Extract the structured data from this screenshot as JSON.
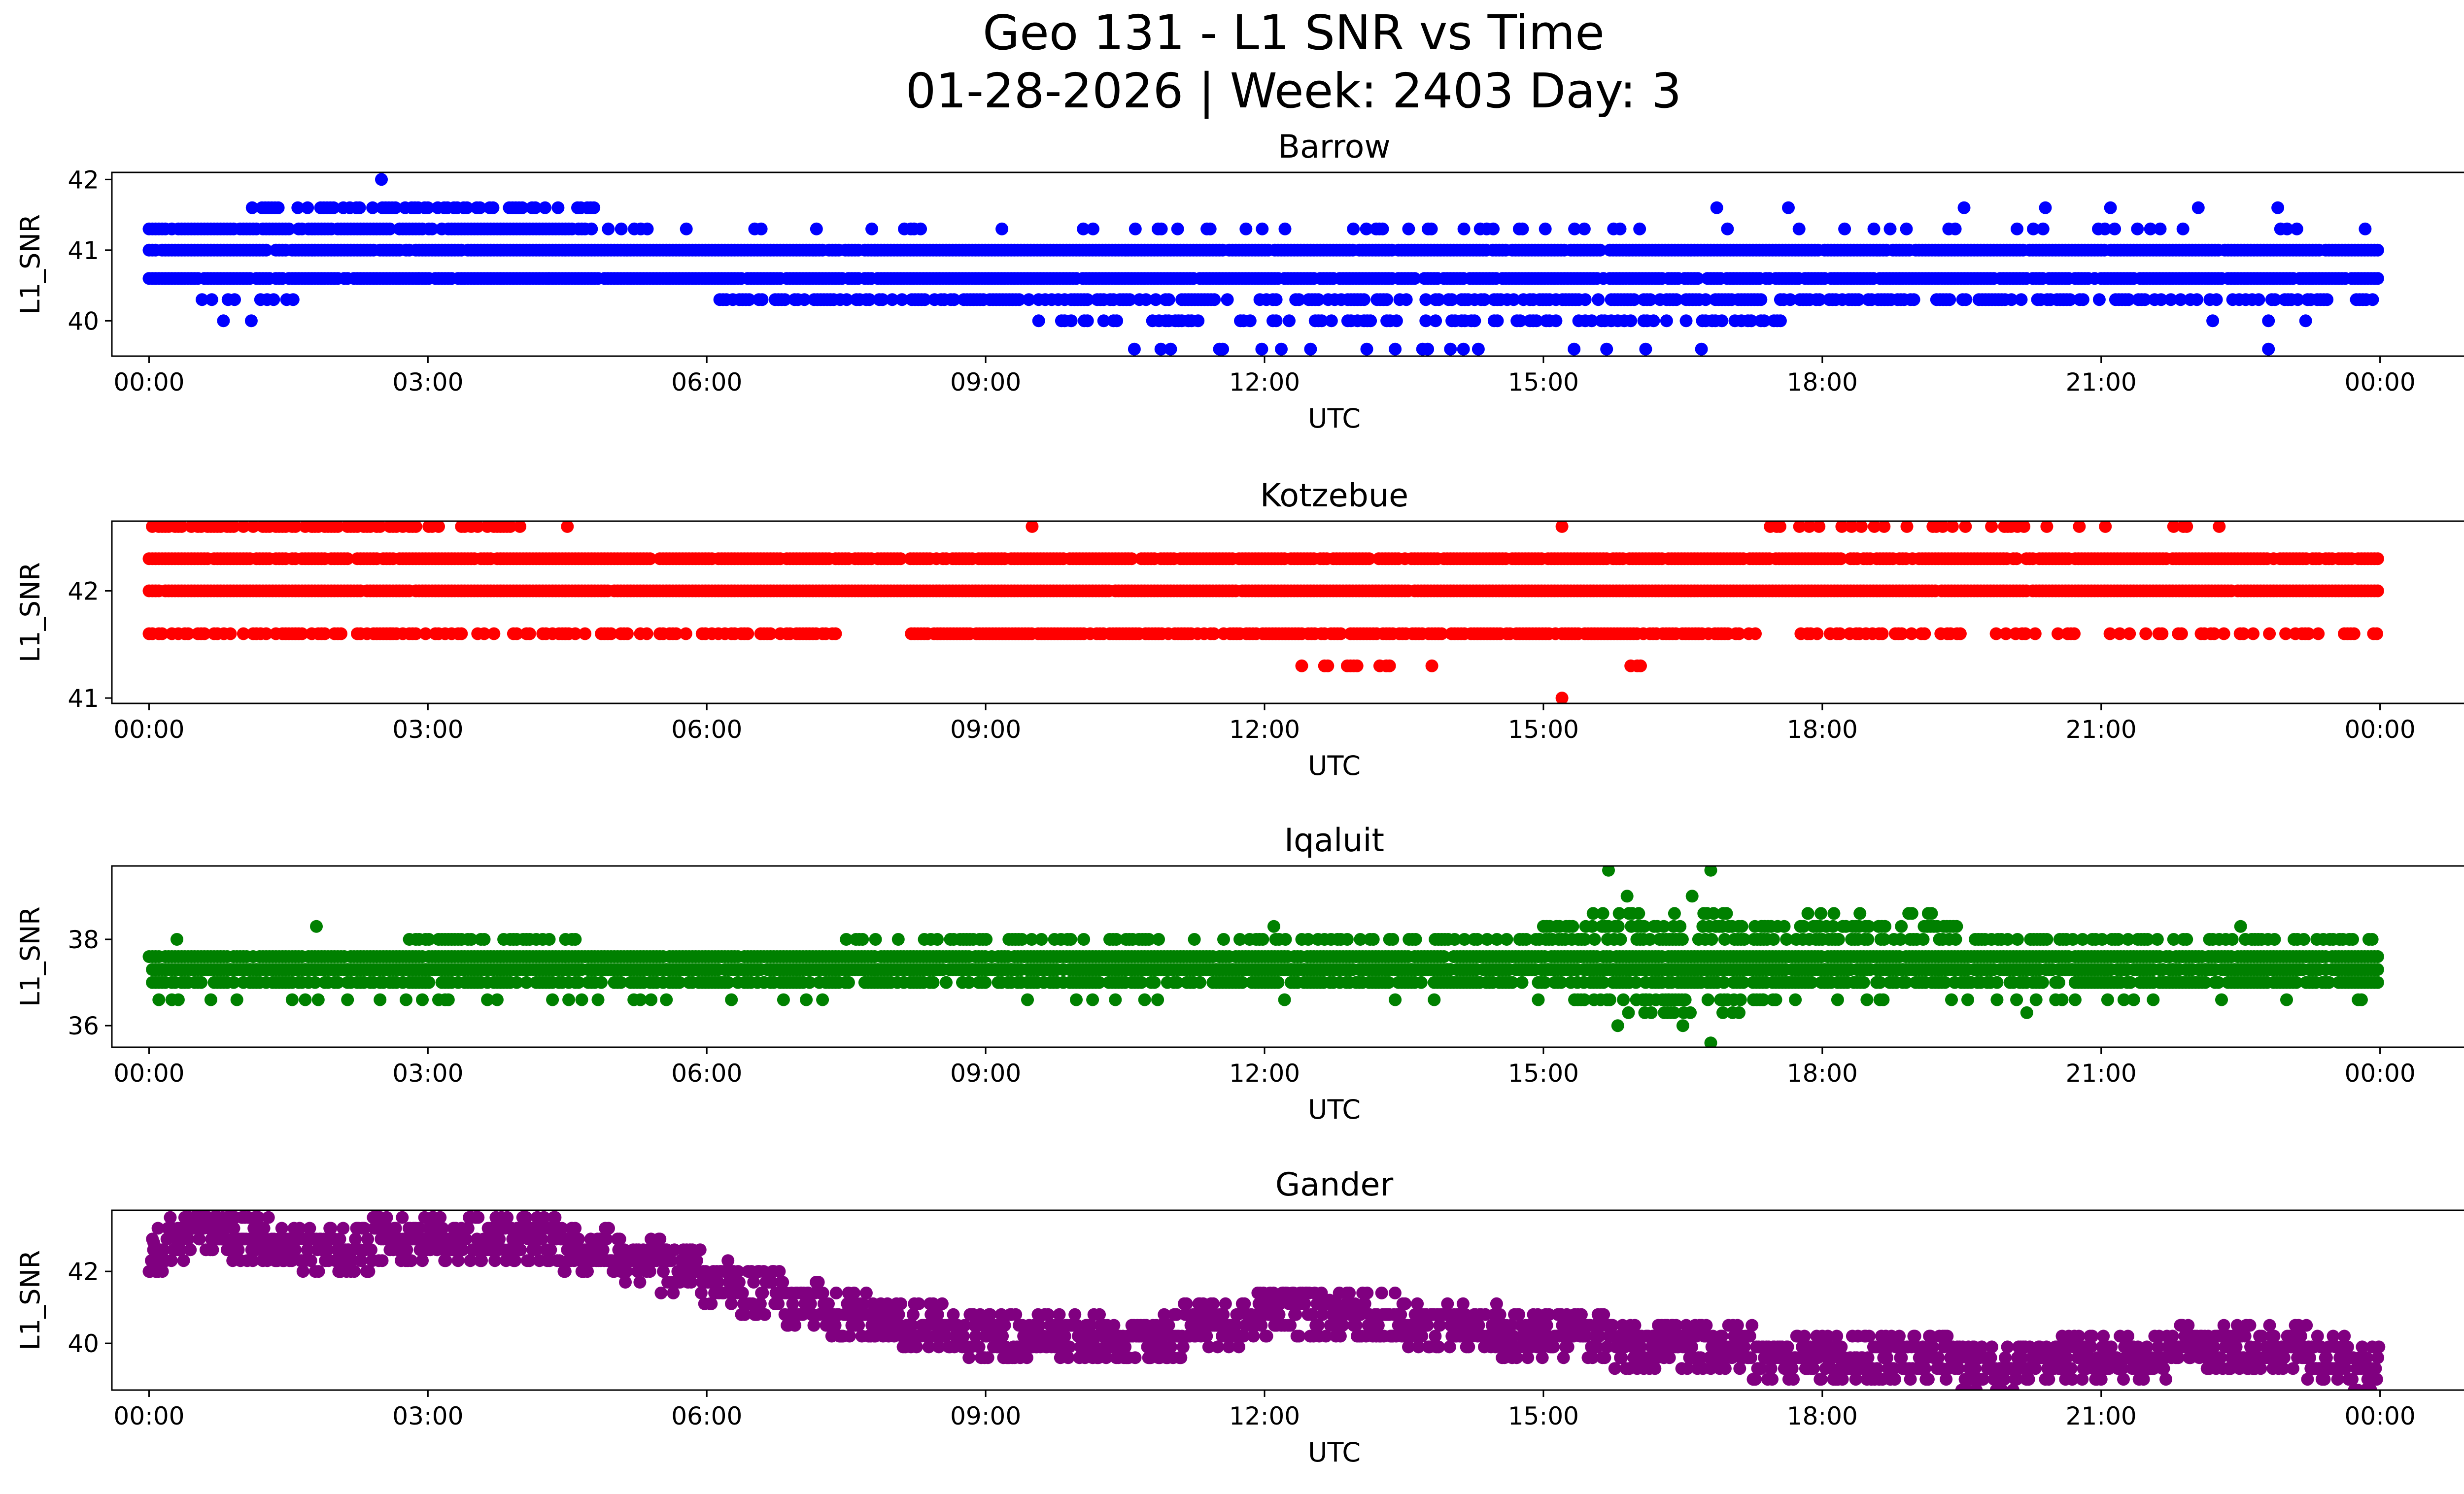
{
  "figure": {
    "title_line1": "Geo 131 - L1 SNR vs Time",
    "title_line2": "01-28-2026 | Week: 2403 Day: 3"
  },
  "chart_data": [
    {
      "type": "scatter",
      "title": "Barrow",
      "xlabel": "UTC",
      "ylabel": "L1_SNR",
      "color": "#0000ff",
      "xlim_hours": [
        -0.4,
        25.9
      ],
      "ylim": [
        39.5,
        42.1
      ],
      "xticks": [
        0,
        3,
        6,
        9,
        12,
        15,
        18,
        21,
        24
      ],
      "xtick_labels": [
        "00:00",
        "03:00",
        "06:00",
        "09:00",
        "12:00",
        "15:00",
        "18:00",
        "21:00",
        "00:00"
      ],
      "yticks": [
        40,
        41,
        42
      ],
      "ytick_labels": [
        "40",
        "41",
        "42"
      ],
      "bands": [
        {
          "y": 41.0,
          "from": 0.0,
          "to": 24.0,
          "density": 0.97
        },
        {
          "y": 40.6,
          "from": 0.0,
          "to": 24.0,
          "density": 0.93
        },
        {
          "y": 41.3,
          "from": 0.0,
          "to": 4.8,
          "density": 0.88
        },
        {
          "y": 41.3,
          "from": 4.8,
          "to": 24.0,
          "density": 0.12
        },
        {
          "y": 41.6,
          "from": 0.9,
          "to": 4.8,
          "density": 0.55
        },
        {
          "y": 41.6,
          "from": 15.5,
          "to": 23.2,
          "density": 0.03
        },
        {
          "y": 40.3,
          "from": 0.5,
          "to": 1.6,
          "density": 0.35
        },
        {
          "y": 40.3,
          "from": 6.0,
          "to": 24.0,
          "density": 0.55
        },
        {
          "y": 40.0,
          "from": 9.5,
          "to": 17.8,
          "density": 0.35
        },
        {
          "y": 39.6,
          "from": 10.5,
          "to": 16.8,
          "density": 0.06
        }
      ],
      "points": [
        [
          2.5,
          42.0
        ],
        [
          0.8,
          40.0
        ],
        [
          1.1,
          40.0
        ],
        [
          10.6,
          39.6
        ],
        [
          13.1,
          39.6
        ],
        [
          13.7,
          39.6
        ],
        [
          14.0,
          39.6
        ],
        [
          14.3,
          39.6
        ],
        [
          16.1,
          39.6
        ],
        [
          16.7,
          39.6
        ],
        [
          22.8,
          39.6
        ],
        [
          22.8,
          40.0
        ],
        [
          23.2,
          40.0
        ],
        [
          22.2,
          40.0
        ],
        [
          22.9,
          41.6
        ],
        [
          2.9,
          40.6
        ],
        [
          4.3,
          40.6
        ]
      ]
    },
    {
      "type": "scatter",
      "title": "Kotzebue",
      "xlabel": "UTC",
      "ylabel": "L1_SNR",
      "color": "#ff0000",
      "xlim_hours": [
        -0.4,
        25.9
      ],
      "ylim": [
        40.95,
        42.65
      ],
      "xticks": [
        0,
        3,
        6,
        9,
        12,
        15,
        18,
        21,
        24
      ],
      "xtick_labels": [
        "00:00",
        "03:00",
        "06:00",
        "09:00",
        "12:00",
        "15:00",
        "18:00",
        "21:00",
        "00:00"
      ],
      "yticks": [
        41,
        42
      ],
      "ytick_labels": [
        "41",
        "42"
      ],
      "bands": [
        {
          "y": 42.0,
          "from": 0.0,
          "to": 24.0,
          "density": 0.98
        },
        {
          "y": 42.3,
          "from": 0.0,
          "to": 24.0,
          "density": 0.9
        },
        {
          "y": 42.6,
          "from": 0.0,
          "to": 4.0,
          "density": 0.6
        },
        {
          "y": 42.6,
          "from": 17.3,
          "to": 22.3,
          "density": 0.22
        },
        {
          "y": 41.6,
          "from": 0.0,
          "to": 7.4,
          "density": 0.5
        },
        {
          "y": 41.6,
          "from": 8.2,
          "to": 17.0,
          "density": 0.85
        },
        {
          "y": 41.6,
          "from": 17.0,
          "to": 24.0,
          "density": 0.35
        },
        {
          "y": 41.3,
          "from": 12.4,
          "to": 13.4,
          "density": 0.3
        },
        {
          "y": 41.3,
          "from": 15.8,
          "to": 16.1,
          "density": 0.5
        }
      ],
      "points": [
        [
          4.5,
          42.6
        ],
        [
          9.5,
          42.6
        ],
        [
          15.2,
          42.6
        ],
        [
          15.2,
          41.0
        ],
        [
          13.8,
          41.3
        ],
        [
          1.2,
          41.6
        ],
        [
          2.6,
          41.6
        ]
      ]
    },
    {
      "type": "scatter",
      "title": "Iqaluit",
      "xlabel": "UTC",
      "ylabel": "L1_SNR",
      "color": "#008000",
      "xlim_hours": [
        -0.4,
        25.9
      ],
      "ylim": [
        35.5,
        39.7
      ],
      "xticks": [
        0,
        3,
        6,
        9,
        12,
        15,
        18,
        21,
        24
      ],
      "xtick_labels": [
        "00:00",
        "03:00",
        "06:00",
        "09:00",
        "12:00",
        "15:00",
        "18:00",
        "21:00",
        "00:00"
      ],
      "yticks": [
        36,
        38
      ],
      "ytick_labels": [
        "36",
        "38"
      ],
      "bands": [
        {
          "y": 37.6,
          "from": 0.0,
          "to": 24.0,
          "density": 0.95
        },
        {
          "y": 37.3,
          "from": 0.0,
          "to": 24.0,
          "density": 0.95
        },
        {
          "y": 37.0,
          "from": 0.0,
          "to": 24.0,
          "density": 0.7
        },
        {
          "y": 38.0,
          "from": 2.8,
          "to": 4.6,
          "density": 0.6
        },
        {
          "y": 38.0,
          "from": 7.5,
          "to": 24.0,
          "density": 0.45
        },
        {
          "y": 36.6,
          "from": 0.0,
          "to": 24.0,
          "density": 0.08
        },
        {
          "y": 38.3,
          "from": 15.0,
          "to": 19.5,
          "density": 0.45
        },
        {
          "y": 38.6,
          "from": 15.5,
          "to": 19.3,
          "density": 0.25
        },
        {
          "y": 36.6,
          "from": 15.3,
          "to": 17.5,
          "density": 0.55
        },
        {
          "y": 36.3,
          "from": 15.6,
          "to": 17.2,
          "density": 0.3
        }
      ],
      "points": [
        [
          15.7,
          39.6
        ],
        [
          16.8,
          39.6
        ],
        [
          16.6,
          39.0
        ],
        [
          15.9,
          39.0
        ],
        [
          16.8,
          35.6
        ],
        [
          15.8,
          36.0
        ],
        [
          16.5,
          36.0
        ],
        [
          1.8,
          38.3
        ],
        [
          12.1,
          38.3
        ],
        [
          22.5,
          38.3
        ],
        [
          0.3,
          38.0
        ],
        [
          5.4,
          36.6
        ],
        [
          20.2,
          36.3
        ],
        [
          23.8,
          36.6
        ]
      ]
    },
    {
      "type": "scatter",
      "title": "Gander",
      "xlabel": "UTC",
      "ylabel": "L1_SNR",
      "color": "#800080",
      "xlim_hours": [
        -0.4,
        25.9
      ],
      "ylim": [
        38.7,
        43.7
      ],
      "xticks": [
        0,
        3,
        6,
        9,
        12,
        15,
        18,
        21,
        24
      ],
      "xtick_labels": [
        "00:00",
        "03:00",
        "06:00",
        "09:00",
        "12:00",
        "15:00",
        "18:00",
        "21:00",
        "00:00"
      ],
      "yticks": [
        40,
        42
      ],
      "ytick_labels": [
        "40",
        "42"
      ],
      "trend": [
        [
          0.0,
          42.5
        ],
        [
          0.5,
          43.2
        ],
        [
          1.0,
          43.0
        ],
        [
          1.5,
          42.7
        ],
        [
          2.0,
          42.6
        ],
        [
          3.0,
          43.0
        ],
        [
          4.0,
          42.9
        ],
        [
          5.0,
          42.5
        ],
        [
          6.0,
          41.8
        ],
        [
          7.0,
          41.1
        ],
        [
          8.0,
          40.5
        ],
        [
          9.0,
          40.3
        ],
        [
          10.0,
          40.2
        ],
        [
          11.0,
          40.3
        ],
        [
          12.0,
          40.7
        ],
        [
          13.0,
          40.8
        ],
        [
          14.0,
          40.5
        ],
        [
          15.0,
          40.2
        ],
        [
          16.0,
          40.0
        ],
        [
          17.0,
          39.8
        ],
        [
          18.0,
          39.6
        ],
        [
          19.0,
          39.5
        ],
        [
          20.0,
          39.4
        ],
        [
          21.0,
          39.5
        ],
        [
          22.0,
          39.8
        ],
        [
          23.0,
          39.9
        ],
        [
          24.0,
          39.2
        ]
      ],
      "points": [
        [
          0.1,
          42.0
        ],
        [
          0.6,
          43.5
        ],
        [
          1.0,
          43.5
        ],
        [
          0.05,
          42.8
        ],
        [
          23.9,
          38.7
        ],
        [
          10.2,
          39.7
        ],
        [
          12.7,
          41.2
        ],
        [
          22.6,
          40.5
        ]
      ]
    }
  ]
}
